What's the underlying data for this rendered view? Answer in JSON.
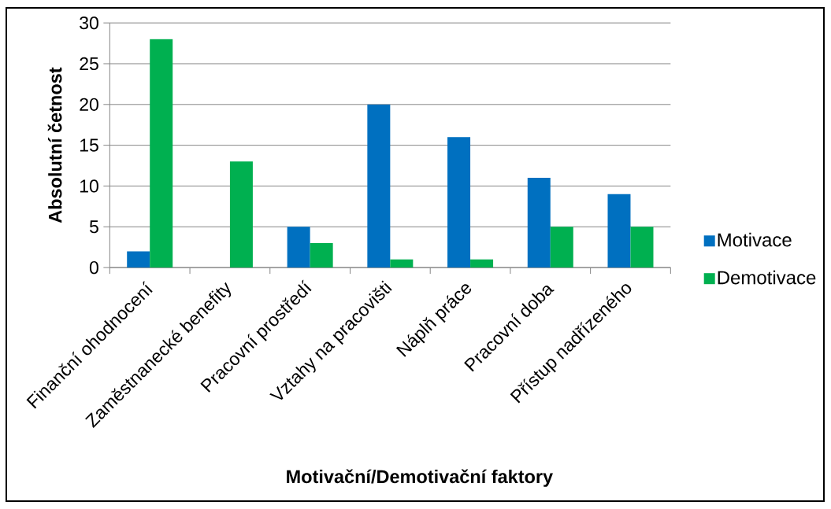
{
  "chart_data": {
    "type": "bar",
    "xlabel": "Motivační/Demotivační faktory",
    "ylabel": "Absolutní četnost",
    "categories": [
      "Finanční ohodnocení",
      "Zaměstnanecké benefity",
      "Pracovní prostředí",
      "Vztahy na pracovišti",
      "Náplň práce",
      "Pracovní doba",
      "Přístup nadřízeného"
    ],
    "series": [
      {
        "name": "Motivace",
        "color": "#0070c0",
        "values": [
          2,
          0,
          5,
          20,
          16,
          11,
          9
        ]
      },
      {
        "name": "Demotivace",
        "color": "#00b050",
        "values": [
          28,
          13,
          3,
          1,
          1,
          5,
          5
        ]
      }
    ],
    "ylim": [
      0,
      30
    ],
    "yticks": [
      0,
      5,
      10,
      15,
      20,
      25,
      30
    ],
    "grid": "y",
    "legend": "right"
  }
}
